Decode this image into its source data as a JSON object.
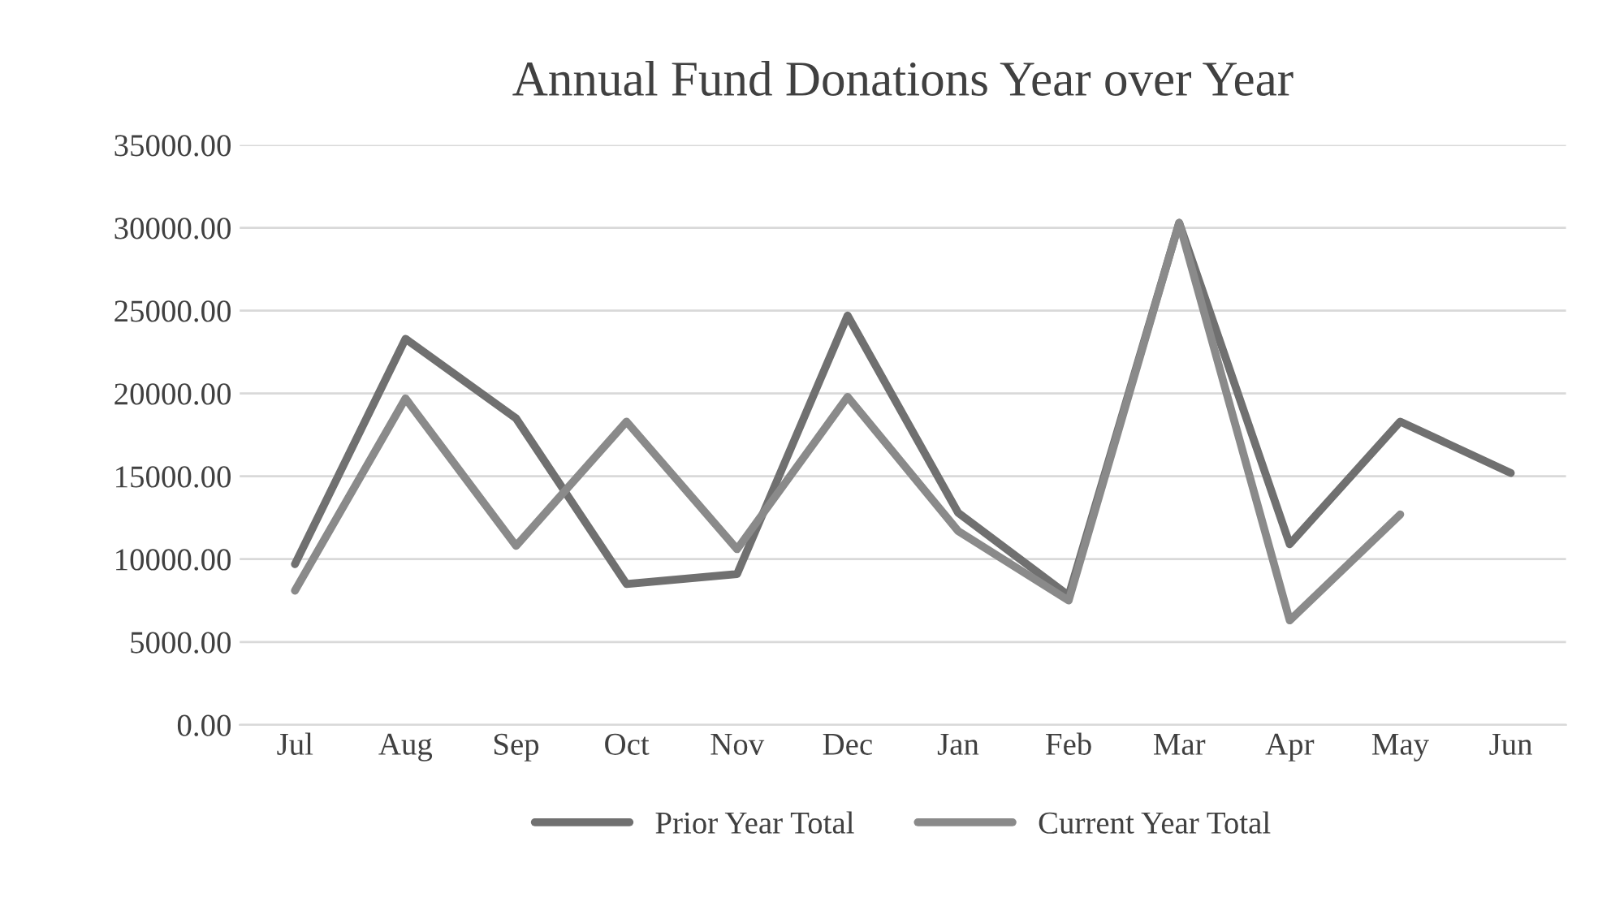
{
  "chart_data": {
    "type": "line",
    "title": "Annual Fund Donations Year over Year",
    "categories": [
      "Jul",
      "Aug",
      "Sep",
      "Oct",
      "Nov",
      "Dec",
      "Jan",
      "Feb",
      "Mar",
      "Apr",
      "May",
      "Jun"
    ],
    "series": [
      {
        "name": "Prior Year Total",
        "color": "#707070",
        "values": [
          9700,
          23300,
          18500,
          8500,
          9100,
          24700,
          12800,
          7800,
          30300,
          10900,
          18300,
          15200
        ]
      },
      {
        "name": "Current Year Total",
        "color": "#8a8a8a",
        "values": [
          8100,
          19700,
          10800,
          18300,
          10600,
          19800,
          11700,
          7500,
          30300,
          6300,
          12700,
          null
        ]
      }
    ],
    "ylim": [
      0,
      35000
    ],
    "yticks": [
      {
        "value": 0,
        "label": "0.00"
      },
      {
        "value": 5000,
        "label": "5000.00"
      },
      {
        "value": 10000,
        "label": "10000.00"
      },
      {
        "value": 15000,
        "label": "15000.00"
      },
      {
        "value": 20000,
        "label": "20000.00"
      },
      {
        "value": 25000,
        "label": "25000.00"
      },
      {
        "value": 30000,
        "label": "30000.00"
      },
      {
        "value": 35000,
        "label": "35000.00"
      }
    ],
    "grid": "y",
    "legend": "bottom",
    "marker": "none",
    "line_style": "solid"
  }
}
